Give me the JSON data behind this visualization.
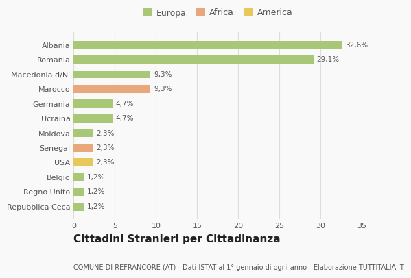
{
  "categories": [
    "Albania",
    "Romania",
    "Macedonia d/N.",
    "Marocco",
    "Germania",
    "Ucraina",
    "Moldova",
    "Senegal",
    "USA",
    "Belgio",
    "Regno Unito",
    "Repubblica Ceca"
  ],
  "values": [
    32.6,
    29.1,
    9.3,
    9.3,
    4.7,
    4.7,
    2.3,
    2.3,
    2.3,
    1.2,
    1.2,
    1.2
  ],
  "labels": [
    "32,6%",
    "29,1%",
    "9,3%",
    "9,3%",
    "4,7%",
    "4,7%",
    "2,3%",
    "2,3%",
    "2,3%",
    "1,2%",
    "1,2%",
    "1,2%"
  ],
  "colors": [
    "#a8c878",
    "#a8c878",
    "#a8c878",
    "#e8a87c",
    "#a8c878",
    "#a8c878",
    "#a8c878",
    "#e8a87c",
    "#e8c85a",
    "#a8c878",
    "#a8c878",
    "#a8c878"
  ],
  "legend_labels": [
    "Europa",
    "Africa",
    "America"
  ],
  "legend_colors": [
    "#a8c878",
    "#e8a87c",
    "#e8c85a"
  ],
  "title": "Cittadini Stranieri per Cittadinanza",
  "subtitle": "COMUNE DI REFRANCORE (AT) - Dati ISTAT al 1° gennaio di ogni anno - Elaborazione TUTTITALIA.IT",
  "xlim": [
    0,
    35
  ],
  "xticks": [
    0,
    5,
    10,
    15,
    20,
    25,
    30,
    35
  ],
  "background_color": "#f9f9f9",
  "grid_color": "#dddddd",
  "bar_height": 0.55,
  "title_fontsize": 11,
  "subtitle_fontsize": 7,
  "label_fontsize": 7.5,
  "tick_fontsize": 8,
  "legend_fontsize": 9
}
